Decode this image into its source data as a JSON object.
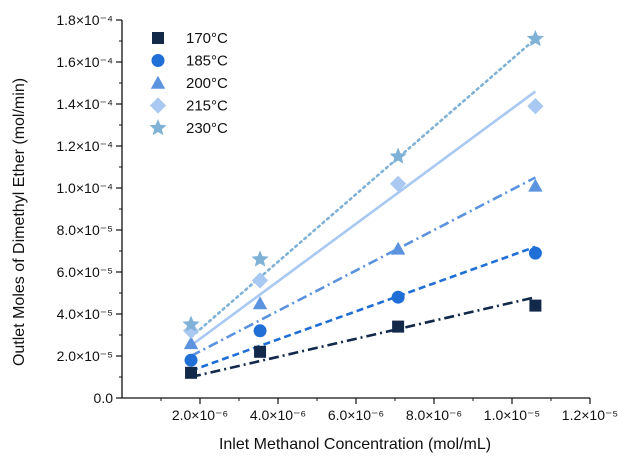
{
  "chart_data": {
    "type": "scatter",
    "xlabel": "Inlet Methanol Concentration (mol/mL)",
    "ylabel": "Outlet Moles of Dimethyl Ether (mol/min)",
    "xlim": [
      0,
      1.2e-05
    ],
    "ylim": [
      0,
      0.00018
    ],
    "x_ticks": [
      {
        "value": 2e-06,
        "label": "2.0×10⁻⁶"
      },
      {
        "value": 4e-06,
        "label": "4.0×10⁻⁶"
      },
      {
        "value": 6e-06,
        "label": "6.0×10⁻⁶"
      },
      {
        "value": 8e-06,
        "label": "8.0×10⁻⁶"
      },
      {
        "value": 1e-05,
        "label": "1.0×10⁻⁵"
      },
      {
        "value": 1.2e-05,
        "label": "1.2×10⁻⁵"
      }
    ],
    "y_ticks": [
      {
        "value": 0,
        "label": "0.0"
      },
      {
        "value": 2e-05,
        "label": "2.0×10⁻⁵"
      },
      {
        "value": 4e-05,
        "label": "4.0×10⁻⁵"
      },
      {
        "value": 6e-05,
        "label": "6.0×10⁻⁵"
      },
      {
        "value": 8e-05,
        "label": "8.0×10⁻⁵"
      },
      {
        "value": 0.0001,
        "label": "1.0×10⁻⁴"
      },
      {
        "value": 0.00012,
        "label": "1.2×10⁻⁴"
      },
      {
        "value": 0.00014,
        "label": "1.4×10⁻⁴"
      },
      {
        "value": 0.00016,
        "label": "1.6×10⁻⁴"
      },
      {
        "value": 0.00018,
        "label": "1.8×10⁻⁴"
      }
    ],
    "legend_position": "top-left",
    "grid": false,
    "series": [
      {
        "name": "170°C",
        "marker": "square",
        "color": "#12294a",
        "line_style": "dashdot",
        "x": [
          1.77e-06,
          3.54e-06,
          7.08e-06,
          1.06e-05
        ],
        "y": [
          1.2e-05,
          2.2e-05,
          3.4e-05,
          4.4e-05
        ],
        "fit": {
          "x": [
            1.77e-06,
            1.06e-05
          ],
          "y": [
            1e-05,
            4.8e-05
          ]
        }
      },
      {
        "name": "185°C",
        "marker": "circle",
        "color": "#1f6fd6",
        "line_style": "dashed",
        "x": [
          1.77e-06,
          3.54e-06,
          7.08e-06,
          1.06e-05
        ],
        "y": [
          1.8e-05,
          3.2e-05,
          4.8e-05,
          6.9e-05
        ],
        "fit": {
          "x": [
            1.77e-06,
            1.06e-05
          ],
          "y": [
            1.3e-05,
            7.2e-05
          ]
        }
      },
      {
        "name": "200°C",
        "marker": "triangle",
        "color": "#5b93df",
        "line_style": "dashdot",
        "x": [
          1.77e-06,
          3.54e-06,
          7.08e-06,
          1.06e-05
        ],
        "y": [
          2.6e-05,
          4.5e-05,
          7.1e-05,
          0.000101
        ],
        "fit": {
          "x": [
            1.77e-06,
            1.06e-05
          ],
          "y": [
            2e-05,
            0.000105
          ]
        }
      },
      {
        "name": "215°C",
        "marker": "diamond",
        "color": "#a9c8f2",
        "line_style": "solid",
        "x": [
          1.77e-06,
          3.54e-06,
          7.08e-06,
          1.06e-05
        ],
        "y": [
          3.2e-05,
          5.6e-05,
          0.000102,
          0.000139
        ],
        "fit": {
          "x": [
            1.77e-06,
            1.06e-05
          ],
          "y": [
            2.5e-05,
            0.000146
          ]
        }
      },
      {
        "name": "230°C",
        "marker": "star",
        "color": "#7fb2d6",
        "line_style": "dotted",
        "x": [
          1.77e-06,
          3.54e-06,
          7.08e-06,
          1.06e-05
        ],
        "y": [
          3.5e-05,
          6.6e-05,
          0.000115,
          0.000171
        ],
        "fit": {
          "x": [
            1.77e-06,
            1.06e-05
          ],
          "y": [
            2.9e-05,
            0.000171
          ]
        }
      }
    ]
  }
}
